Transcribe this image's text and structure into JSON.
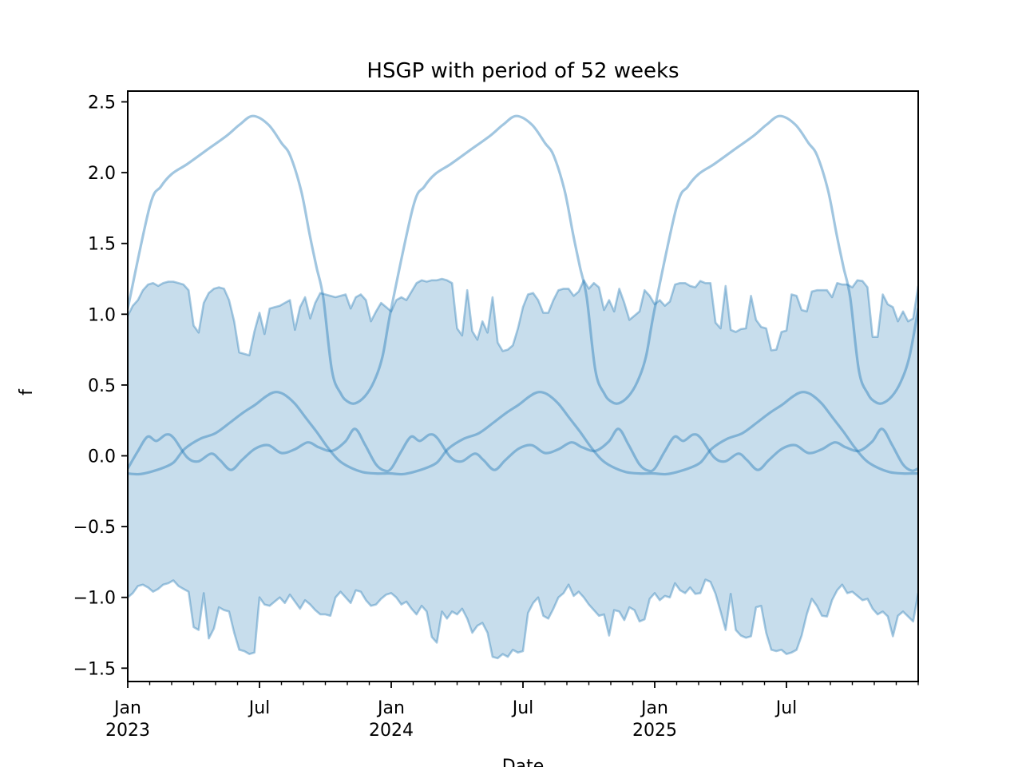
{
  "chart_data": {
    "type": "line",
    "title": "HSGP with period of 52 weeks",
    "xlabel": "Date",
    "ylabel": "f",
    "grid": false,
    "legend": "none",
    "x_axis": {
      "unit": "months since Jan 2023",
      "range_months": [
        0,
        36
      ],
      "minor_tick_every_months": 1,
      "major_ticks": [
        {
          "month": 0,
          "line1": "Jan",
          "line2": "2023"
        },
        {
          "month": 6,
          "line1": "Jul",
          "line2": ""
        },
        {
          "month": 12,
          "line1": "Jan",
          "line2": "2024"
        },
        {
          "month": 18,
          "line1": "Jul",
          "line2": ""
        },
        {
          "month": 24,
          "line1": "Jan",
          "line2": "2025"
        },
        {
          "month": 30,
          "line1": "Jul",
          "line2": ""
        }
      ]
    },
    "y_axis": {
      "range": [
        -1.59,
        2.58
      ],
      "ticks": [
        {
          "value": 2.5,
          "label": "2.5"
        },
        {
          "value": 2.0,
          "label": "2.0"
        },
        {
          "value": 1.5,
          "label": "1.5"
        },
        {
          "value": 1.0,
          "label": "1.0"
        },
        {
          "value": 0.5,
          "label": "0.5"
        },
        {
          "value": 0.0,
          "label": "0.0"
        },
        {
          "value": -0.5,
          "label": "−0.5"
        },
        {
          "value": -1.0,
          "label": "−1.0"
        },
        {
          "value": -1.5,
          "label": "−1.5"
        }
      ]
    },
    "colors": {
      "base": "#1f77b4",
      "line_alpha": 0.42,
      "band_fill_alpha": 0.25,
      "band_edge_alpha": 0.38,
      "axis": "#000000"
    },
    "series": [
      {
        "name": "gp-sample-large",
        "periodic": true,
        "period_weeks": 52,
        "period_months": 12,
        "keypoints_m": [
          0,
          1,
          1.5,
          2,
          2.7,
          3.6,
          4.5,
          5.1,
          5.7,
          6.4,
          7.0,
          7.4,
          7.9,
          8.3,
          8.6,
          8.9,
          9.3,
          9.7,
          10.0,
          10.35,
          10.8,
          11.2,
          11.6
        ],
        "keypoints_v": [
          1.04,
          1.76,
          1.9,
          1.99,
          2.06,
          2.16,
          2.26,
          2.34,
          2.4,
          2.34,
          2.21,
          2.12,
          1.87,
          1.55,
          1.33,
          1.12,
          0.6,
          0.44,
          0.385,
          0.37,
          0.42,
          0.52,
          0.7
        ]
      },
      {
        "name": "gp-sample-medium",
        "periodic": true,
        "period_weeks": 52,
        "period_months": 12,
        "keypoints_m": [
          0,
          0.5,
          1.0,
          1.6,
          2.1,
          2.6,
          3.3,
          4.0,
          4.7,
          5.3,
          5.8,
          6.3,
          6.7,
          7.1,
          7.6,
          8.1,
          8.6,
          9.1,
          9.6,
          10.1,
          10.7,
          11.3,
          11.7
        ],
        "keypoints_v": [
          -0.125,
          -0.13,
          -0.115,
          -0.085,
          -0.045,
          0.05,
          0.12,
          0.16,
          0.24,
          0.31,
          0.36,
          0.42,
          0.45,
          0.435,
          0.37,
          0.27,
          0.17,
          0.06,
          -0.03,
          -0.08,
          -0.115,
          -0.125,
          -0.125
        ]
      },
      {
        "name": "gp-sample-small-wiggly",
        "periodic": true,
        "period_weeks": 52,
        "period_months": 12,
        "keypoints_m": [
          0,
          0.45,
          0.9,
          1.3,
          1.75,
          2.1,
          2.7,
          3.2,
          3.8,
          4.2,
          4.7,
          5.2,
          5.8,
          6.4,
          7.0,
          7.6,
          8.2,
          8.7,
          9.3,
          9.9,
          10.35,
          10.8,
          11.3,
          11.7
        ],
        "keypoints_v": [
          -0.09,
          0.03,
          0.135,
          0.105,
          0.15,
          0.125,
          -0.01,
          -0.04,
          0.015,
          -0.03,
          -0.1,
          -0.03,
          0.05,
          0.075,
          0.02,
          0.045,
          0.095,
          0.06,
          0.035,
          0.1,
          0.19,
          0.08,
          -0.06,
          -0.105
        ]
      }
    ],
    "band": {
      "name": "hdi-band",
      "sampling": "weekly",
      "weeks_total": 156,
      "upper": [
        0.99,
        1.06,
        1.1,
        1.17,
        1.21,
        1.22,
        1.2,
        1.22,
        1.23,
        1.23,
        1.22,
        1.21,
        1.17,
        0.92,
        0.87,
        1.08,
        1.15,
        1.18,
        1.19,
        1.18,
        1.1,
        0.95,
        0.73,
        0.72,
        0.71,
        0.88,
        1.01,
        0.86,
        1.04,
        1.05,
        1.06,
        1.08,
        1.1,
        0.89,
        1.05,
        1.12,
        0.97,
        1.08,
        1.15,
        1.14,
        1.13,
        1.12,
        1.13,
        1.14,
        1.04,
        1.12,
        1.14,
        1.1,
        0.95,
        1.02,
        1.08,
        1.05,
        1.02,
        1.1,
        1.12,
        1.1,
        1.16,
        1.22,
        1.24,
        1.23,
        1.24,
        1.24,
        1.25,
        1.24,
        1.22,
        0.9,
        0.85,
        1.17,
        0.88,
        0.82,
        0.95,
        0.87,
        1.12,
        0.8,
        0.74,
        0.75,
        0.78,
        0.9,
        1.05,
        1.14,
        1.15,
        1.1,
        1.01,
        1.01,
        1.1,
        1.17,
        1.18,
        1.18,
        1.13,
        1.16,
        1.24,
        1.18,
        1.22,
        1.19,
        1.03,
        1.1,
        1.02,
        1.18,
        1.08,
        0.96,
        0.99,
        1.02,
        1.17,
        1.13,
        1.07,
        1.1,
        1.06,
        1.09,
        1.21,
        1.22,
        1.22,
        1.2,
        1.19,
        1.235,
        1.22,
        1.22,
        0.94,
        0.9,
        1.2,
        0.89,
        0.875,
        0.895,
        0.9,
        1.13,
        0.96,
        0.91,
        0.9,
        0.745,
        0.75,
        0.875,
        0.885,
        1.14,
        1.13,
        1.03,
        1.02,
        1.16,
        1.17,
        1.17,
        1.17,
        1.12,
        1.22,
        1.21,
        1.21,
        1.19,
        1.24,
        1.235,
        1.19,
        0.84,
        0.84,
        1.14,
        1.07,
        1.05,
        0.95,
        1.02,
        0.95,
        0.97,
        1.2
      ],
      "lower": [
        -1.0,
        -0.97,
        -0.92,
        -0.91,
        -0.93,
        -0.96,
        -0.94,
        -0.91,
        -0.9,
        -0.88,
        -0.92,
        -0.94,
        -0.96,
        -1.21,
        -1.23,
        -0.97,
        -1.29,
        -1.22,
        -1.07,
        -1.09,
        -1.1,
        -1.25,
        -1.37,
        -1.38,
        -1.4,
        -1.39,
        -1.0,
        -1.05,
        -1.06,
        -1.03,
        -1.0,
        -1.04,
        -0.98,
        -1.03,
        -1.08,
        -1.02,
        -1.05,
        -1.09,
        -1.12,
        -1.12,
        -1.13,
        -1.0,
        -0.96,
        -1.0,
        -1.04,
        -0.95,
        -0.96,
        -1.02,
        -1.06,
        -1.05,
        -1.01,
        -0.98,
        -0.97,
        -1.0,
        -1.05,
        -1.03,
        -1.08,
        -1.12,
        -1.06,
        -1.1,
        -1.28,
        -1.32,
        -1.1,
        -1.15,
        -1.1,
        -1.12,
        -1.08,
        -1.15,
        -1.25,
        -1.2,
        -1.18,
        -1.25,
        -1.42,
        -1.43,
        -1.4,
        -1.42,
        -1.37,
        -1.39,
        -1.38,
        -1.11,
        -1.04,
        -1.0,
        -1.13,
        -1.15,
        -1.08,
        -1.0,
        -0.97,
        -0.91,
        -0.99,
        -0.96,
        -1.0,
        -1.05,
        -1.09,
        -1.13,
        -1.12,
        -1.27,
        -1.09,
        -1.1,
        -1.16,
        -1.07,
        -1.09,
        -1.17,
        -1.155,
        -1.01,
        -0.97,
        -1.02,
        -0.99,
        -1.0,
        -0.9,
        -0.95,
        -0.97,
        -0.93,
        -0.975,
        -0.97,
        -0.875,
        -0.89,
        -0.975,
        -1.1,
        -1.23,
        -0.975,
        -1.23,
        -1.27,
        -1.285,
        -1.275,
        -1.07,
        -1.06,
        -1.25,
        -1.37,
        -1.38,
        -1.37,
        -1.4,
        -1.39,
        -1.37,
        -1.27,
        -1.12,
        -1.01,
        -1.06,
        -1.13,
        -1.135,
        -1.02,
        -0.95,
        -0.91,
        -0.97,
        -0.96,
        -0.99,
        -1.02,
        -1.01,
        -1.08,
        -1.12,
        -1.1,
        -1.135,
        -1.275,
        -1.13,
        -1.1,
        -1.135,
        -1.17,
        -0.97
      ]
    }
  }
}
